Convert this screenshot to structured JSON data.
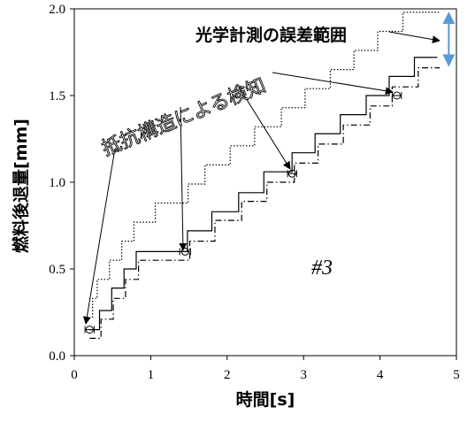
{
  "chart_data": {
    "type": "line",
    "title": "",
    "xlabel": "時間[s]",
    "ylabel": "燃料後退量[mm]",
    "xlim": [
      0,
      5
    ],
    "ylim": [
      0,
      2.0
    ],
    "x_ticks": [
      "0",
      "1",
      "2",
      "3",
      "4",
      "5"
    ],
    "y_ticks": [
      "0.0",
      "0.5",
      "1.0",
      "1.5",
      "2.0"
    ],
    "grid": false,
    "legend": "none",
    "series": [
      {
        "style": "solid",
        "color": "#000000",
        "points": [
          [
            0.2,
            0.15
          ],
          [
            0.33,
            0.15
          ],
          [
            0.33,
            0.26
          ],
          [
            0.49,
            0.26
          ],
          [
            0.49,
            0.39
          ],
          [
            0.65,
            0.39
          ],
          [
            0.65,
            0.5
          ],
          [
            0.81,
            0.5
          ],
          [
            0.81,
            0.6
          ],
          [
            1.48,
            0.6
          ],
          [
            1.48,
            0.72
          ],
          [
            1.8,
            0.72
          ],
          [
            1.8,
            0.83
          ],
          [
            2.15,
            0.83
          ],
          [
            2.15,
            0.94
          ],
          [
            2.48,
            0.94
          ],
          [
            2.48,
            1.06
          ],
          [
            2.85,
            1.06
          ],
          [
            2.85,
            1.17
          ],
          [
            3.15,
            1.17
          ],
          [
            3.15,
            1.28
          ],
          [
            3.48,
            1.28
          ],
          [
            3.48,
            1.39
          ],
          [
            3.82,
            1.39
          ],
          [
            3.82,
            1.5
          ],
          [
            4.12,
            1.5
          ],
          [
            4.12,
            1.61
          ],
          [
            4.45,
            1.61
          ],
          [
            4.45,
            1.72
          ],
          [
            4.75,
            1.72
          ],
          [
            4.75,
            1.72
          ]
        ]
      },
      {
        "style": "dash-dot",
        "color": "#000000",
        "points": [
          [
            0.2,
            0.1
          ],
          [
            0.35,
            0.1
          ],
          [
            0.35,
            0.21
          ],
          [
            0.51,
            0.21
          ],
          [
            0.51,
            0.33
          ],
          [
            0.67,
            0.33
          ],
          [
            0.67,
            0.44
          ],
          [
            0.84,
            0.44
          ],
          [
            0.84,
            0.55
          ],
          [
            1.51,
            0.55
          ],
          [
            1.51,
            0.66
          ],
          [
            1.84,
            0.66
          ],
          [
            1.84,
            0.78
          ],
          [
            2.19,
            0.78
          ],
          [
            2.19,
            0.89
          ],
          [
            2.52,
            0.89
          ],
          [
            2.52,
            1.0
          ],
          [
            2.88,
            1.0
          ],
          [
            2.88,
            1.11
          ],
          [
            3.19,
            1.11
          ],
          [
            3.19,
            1.22
          ],
          [
            3.52,
            1.22
          ],
          [
            3.52,
            1.33
          ],
          [
            3.87,
            1.33
          ],
          [
            3.87,
            1.44
          ],
          [
            4.16,
            1.44
          ],
          [
            4.16,
            1.55
          ],
          [
            4.5,
            1.55
          ],
          [
            4.5,
            1.66
          ],
          [
            4.78,
            1.66
          ]
        ]
      },
      {
        "style": "dotted",
        "color": "#000000",
        "points": [
          [
            0.24,
            0.22
          ],
          [
            0.24,
            0.33
          ],
          [
            0.3,
            0.33
          ],
          [
            0.3,
            0.44
          ],
          [
            0.46,
            0.44
          ],
          [
            0.46,
            0.55
          ],
          [
            0.62,
            0.55
          ],
          [
            0.62,
            0.66
          ],
          [
            0.78,
            0.66
          ],
          [
            0.78,
            0.77
          ],
          [
            1.06,
            0.77
          ],
          [
            1.06,
            0.88
          ],
          [
            1.49,
            0.88
          ],
          [
            1.49,
            0.99
          ],
          [
            1.71,
            0.99
          ],
          [
            1.71,
            1.1
          ],
          [
            2.04,
            1.1
          ],
          [
            2.04,
            1.21
          ],
          [
            2.36,
            1.21
          ],
          [
            2.36,
            1.32
          ],
          [
            2.71,
            1.32
          ],
          [
            2.71,
            1.43
          ],
          [
            3.02,
            1.43
          ],
          [
            3.02,
            1.54
          ],
          [
            3.35,
            1.54
          ],
          [
            3.35,
            1.65
          ],
          [
            3.66,
            1.65
          ],
          [
            3.66,
            1.76
          ],
          [
            3.97,
            1.76
          ],
          [
            3.97,
            1.87
          ],
          [
            4.3,
            1.87
          ],
          [
            4.3,
            1.98
          ],
          [
            4.78,
            1.98
          ]
        ]
      }
    ],
    "markers": [
      {
        "x": 0.2,
        "y": 0.15,
        "xerr": 0.06
      },
      {
        "x": 1.45,
        "y": 0.6,
        "xerr": 0.07
      },
      {
        "x": 2.85,
        "y": 1.05,
        "xerr": 0.06
      },
      {
        "x": 4.22,
        "y": 1.5,
        "xerr": 0.06
      }
    ],
    "annotations": {
      "label_optical": "光学計測の誤差範囲",
      "label_resistive": "抵抗構造による検知",
      "label_case": "#3",
      "range_arrow": {
        "x": 4.9,
        "y_low": 1.68,
        "y_high": 1.97,
        "color": "#5b9bd5"
      }
    }
  }
}
